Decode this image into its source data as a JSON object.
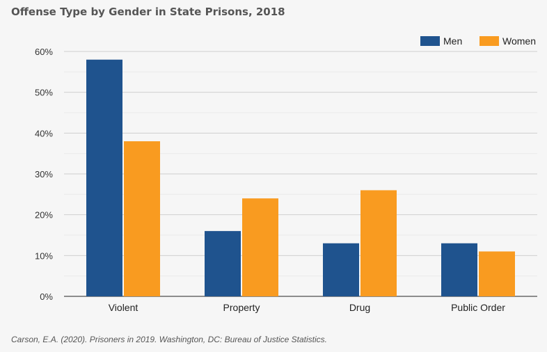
{
  "chart_data": {
    "type": "bar",
    "title": "Offense Type by Gender in State Prisons, 2018",
    "categories": [
      "Violent",
      "Property",
      "Drug",
      "Public Order"
    ],
    "series": [
      {
        "name": "Men",
        "values": [
          58,
          16,
          13,
          13
        ],
        "color": "#1f538e"
      },
      {
        "name": "Women",
        "values": [
          38,
          24,
          26,
          11
        ],
        "color": "#f99b20"
      }
    ],
    "xlabel": "",
    "ylabel": "",
    "ylim": [
      0,
      60
    ],
    "yticks": [
      0,
      10,
      20,
      30,
      40,
      50,
      60
    ],
    "ytick_labels": [
      "0%",
      "10%",
      "20%",
      "30%",
      "40%",
      "50%",
      "60%"
    ],
    "grid": true,
    "legend_position": "top-right"
  },
  "source": "Carson, E.A. (2020). Prisoners in 2019. Washington, DC: Bureau of Justice Statistics."
}
